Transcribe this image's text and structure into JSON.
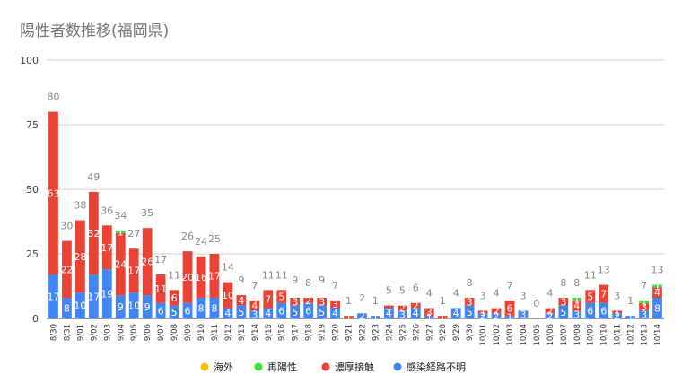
{
  "chart_data": {
    "type": "bar",
    "stacked": true,
    "title": "陽性者数推移(福岡県)",
    "xlabel": "",
    "ylabel": "",
    "ylim": [
      0,
      100
    ],
    "yticks": [
      0,
      25,
      50,
      75,
      100
    ],
    "grid": true,
    "legend_position": "bottom",
    "categories": [
      "8/30",
      "8/31",
      "9/01",
      "9/02",
      "9/03",
      "9/04",
      "9/05",
      "9/06",
      "9/07",
      "9/08",
      "9/09",
      "9/10",
      "9/11",
      "9/12",
      "9/13",
      "9/14",
      "9/15",
      "9/16",
      "9/17",
      "9/18",
      "9/19",
      "9/20",
      "9/21",
      "9/22",
      "9/23",
      "9/24",
      "9/25",
      "9/26",
      "9/27",
      "9/28",
      "9/29",
      "9/30",
      "10/01",
      "10/02",
      "10/03",
      "10/04",
      "10/05",
      "10/06",
      "10/07",
      "10/08",
      "10/09",
      "10/10",
      "10/11",
      "10/12",
      "10/13",
      "10/14"
    ],
    "series": [
      {
        "name": "海外",
        "color": "#fbbc04",
        "values": [
          0,
          0,
          0,
          0,
          0,
          0,
          0,
          0,
          0,
          0,
          0,
          0,
          0,
          0,
          0,
          0,
          0,
          0,
          0,
          0,
          0,
          0,
          0,
          0,
          0,
          0,
          0,
          0,
          0,
          0,
          0,
          0,
          0,
          0,
          0,
          0,
          0,
          0,
          0,
          0,
          0,
          0,
          0,
          0,
          0,
          0
        ]
      },
      {
        "name": "再陽性",
        "color": "#34e534",
        "values": [
          0,
          0,
          0,
          0,
          0,
          1,
          0,
          0,
          0,
          0,
          0,
          0,
          0,
          0,
          0,
          0,
          0,
          0,
          0,
          0,
          0,
          0,
          0,
          0,
          0,
          0,
          0,
          0,
          0,
          0,
          0,
          0,
          0,
          0,
          0,
          0,
          0,
          0,
          0,
          1,
          0,
          0,
          0,
          0,
          1,
          1
        ]
      },
      {
        "name": "濃厚接触",
        "color": "#ea4335",
        "values": [
          63,
          22,
          28,
          32,
          17,
          24,
          17,
          26,
          11,
          6,
          20,
          16,
          17,
          10,
          4,
          4,
          7,
          5,
          3,
          2,
          3,
          3,
          1,
          0,
          0,
          1,
          2,
          2,
          3,
          1,
          0,
          3,
          1,
          2,
          6,
          0,
          0,
          2,
          3,
          4,
          5,
          7,
          1,
          0,
          3,
          4
        ]
      },
      {
        "name": "感染経路不明",
        "color": "#4285f4",
        "values": [
          17,
          8,
          10,
          17,
          19,
          9,
          10,
          9,
          6,
          5,
          6,
          8,
          8,
          4,
          5,
          3,
          4,
          6,
          5,
          6,
          5,
          4,
          0,
          2,
          1,
          4,
          3,
          4,
          1,
          0,
          4,
          5,
          2,
          2,
          1,
          3,
          0,
          2,
          5,
          3,
          6,
          6,
          2,
          1,
          3,
          8
        ]
      }
    ],
    "totals": [
      80,
      30,
      38,
      49,
      36,
      34,
      27,
      35,
      17,
      11,
      26,
      24,
      25,
      14,
      9,
      7,
      11,
      11,
      9,
      8,
      9,
      7,
      1,
      2,
      1,
      5,
      5,
      6,
      4,
      1,
      4,
      8,
      3,
      4,
      7,
      3,
      0,
      4,
      8,
      8,
      11,
      13,
      3,
      1,
      7,
      13
    ]
  }
}
